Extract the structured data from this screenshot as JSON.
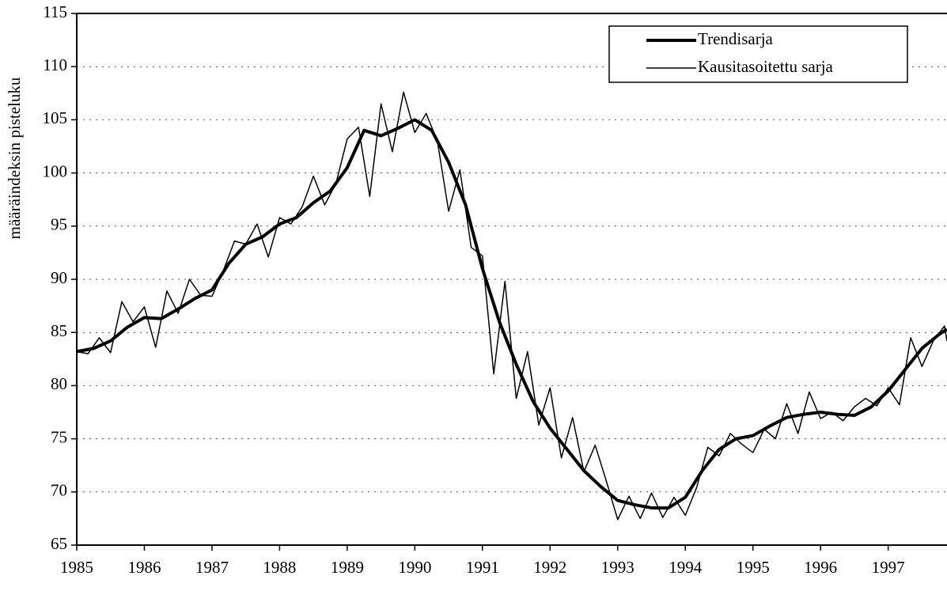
{
  "chart_data": {
    "type": "line",
    "y_label": "määräindeksin pisteluku",
    "xlim": [
      1985,
      1997.87
    ],
    "xticks": [
      1985,
      1986,
      1987,
      1988,
      1989,
      1990,
      1991,
      1992,
      1993,
      1994,
      1995,
      1996,
      1997
    ],
    "ylim": [
      65,
      115
    ],
    "yticks": [
      65,
      70,
      75,
      80,
      85,
      90,
      95,
      100,
      105,
      110,
      115
    ],
    "grid": true,
    "legend": "top-right",
    "series": [
      {
        "name": "Trendisarja",
        "color": "#000000",
        "width": 4,
        "x": [
          1985,
          1985.25,
          1985.5,
          1985.75,
          1986,
          1986.25,
          1986.5,
          1986.75,
          1987,
          1987.25,
          1987.5,
          1987.75,
          1988,
          1988.25,
          1988.5,
          1988.75,
          1989,
          1989.25,
          1989.5,
          1989.75,
          1990,
          1990.25,
          1990.5,
          1990.75,
          1991,
          1991.25,
          1991.5,
          1991.75,
          1992,
          1992.25,
          1992.5,
          1992.75,
          1993,
          1993.25,
          1993.5,
          1993.75,
          1994,
          1994.25,
          1994.5,
          1994.75,
          1995,
          1995.25,
          1995.5,
          1995.75,
          1996,
          1996.25,
          1996.5,
          1996.75,
          1997,
          1997.25,
          1997.5,
          1997.75,
          1997.87
        ],
        "values": [
          83.2,
          83.5,
          84.2,
          85.5,
          86.4,
          86.3,
          87.2,
          88.2,
          89.0,
          91.5,
          93.3,
          94.0,
          95.2,
          95.8,
          97.2,
          98.3,
          100.5,
          104.0,
          103.5,
          104.2,
          105.0,
          104.0,
          101.0,
          97.0,
          91.0,
          86.0,
          82.0,
          78.5,
          76.0,
          74.0,
          72.0,
          70.5,
          69.2,
          68.8,
          68.5,
          68.5,
          69.5,
          72.0,
          74.0,
          75.0,
          75.3,
          76.2,
          77.0,
          77.3,
          77.5,
          77.3,
          77.2,
          78.0,
          79.5,
          81.5,
          83.5,
          84.8,
          85.3
        ]
      },
      {
        "name": "Kausitasoitettu sarja",
        "color": "#000000",
        "width": 1.5,
        "x": [
          1985,
          1985.167,
          1985.333,
          1985.5,
          1985.667,
          1985.833,
          1986,
          1986.167,
          1986.333,
          1986.5,
          1986.667,
          1986.833,
          1987,
          1987.167,
          1987.333,
          1987.5,
          1987.667,
          1987.833,
          1988,
          1988.167,
          1988.333,
          1988.5,
          1988.667,
          1988.833,
          1989,
          1989.167,
          1989.333,
          1989.5,
          1989.667,
          1989.833,
          1990,
          1990.167,
          1990.333,
          1990.5,
          1990.667,
          1990.833,
          1991,
          1991.167,
          1991.333,
          1991.5,
          1991.667,
          1991.833,
          1992,
          1992.167,
          1992.333,
          1992.5,
          1992.667,
          1992.833,
          1993,
          1993.167,
          1993.333,
          1993.5,
          1993.667,
          1993.833,
          1994,
          1994.167,
          1994.333,
          1994.5,
          1994.667,
          1994.833,
          1995,
          1995.167,
          1995.333,
          1995.5,
          1995.667,
          1995.833,
          1996,
          1996.167,
          1996.333,
          1996.5,
          1996.667,
          1996.833,
          1997,
          1997.167,
          1997.333,
          1997.5,
          1997.667,
          1997.833,
          1997.87
        ],
        "values": [
          83.2,
          83.0,
          84.5,
          83.1,
          87.9,
          86.0,
          87.4,
          83.6,
          88.9,
          86.8,
          90.0,
          88.5,
          88.4,
          90.8,
          93.6,
          93.3,
          95.2,
          92.1,
          95.8,
          95.2,
          96.8,
          99.7,
          97.0,
          99.0,
          103.2,
          104.3,
          97.8,
          106.5,
          102.0,
          107.6,
          103.8,
          105.6,
          103.0,
          96.4,
          100.3,
          93.0,
          92.2,
          81.1,
          89.8,
          78.8,
          83.2,
          76.3,
          79.8,
          73.2,
          77.0,
          71.9,
          74.4,
          71.0,
          67.4,
          69.6,
          67.5,
          69.9,
          67.6,
          69.5,
          67.8,
          70.4,
          74.2,
          73.4,
          75.5,
          74.5,
          73.7,
          75.9,
          75.0,
          78.3,
          75.5,
          79.4,
          76.9,
          77.5,
          76.7,
          78.0,
          78.8,
          78.1,
          79.8,
          78.2,
          84.5,
          81.8,
          84.2,
          85.6,
          84.2
        ]
      }
    ]
  }
}
